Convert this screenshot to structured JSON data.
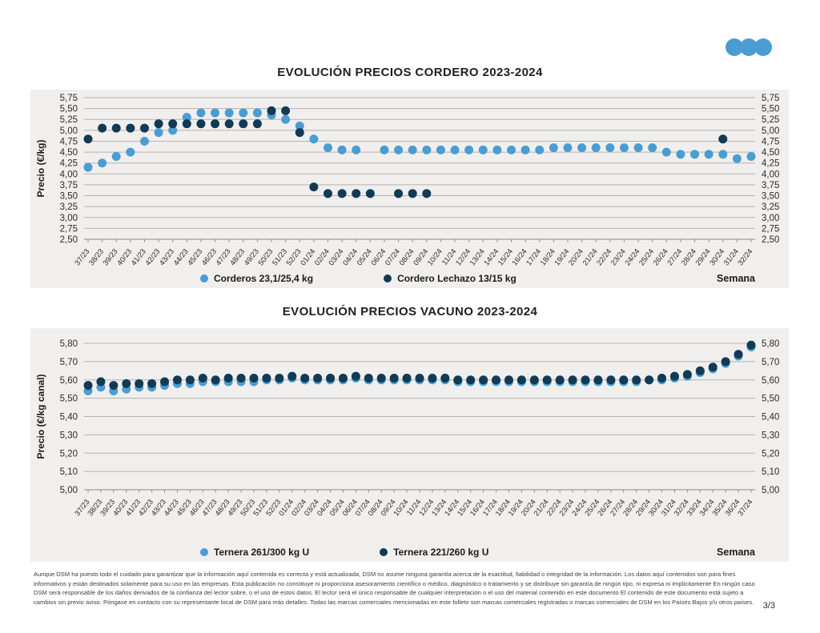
{
  "page": {
    "logo": {
      "name": "three-dots-logo",
      "color": "#4A9DD2"
    },
    "footer_text": "Aunque DSM ha puesto todo el cuidado para garantizar que la información aquí contenida es correcta y está actualizada, DSM no asume ninguna garantía acerca de la exactitud, fiabilidad o integridad de la información. Los datos aquí contenidos son para fines informativos y están destinados solamente para su uso en las empresas. Esta publicación no constituye ni proporciona asesoramiento científico o médico, diagnóstico o tratamiento y se distribuye sin garantía de ningún tipo, ni expresa ni implícitamente En ningún caso DSM será responsable de los daños derivados de la confianza del lector sobre, o el uso de estos datos. El lector será el único responsable de cualquier interpretación o el uso del material contenido en este documento El contenido de este documento está sujeto a cambios sin previo aviso. Póngase en contacto con su representante local de DSM para más detalles. Todas las marcas comerciales mencionadas en este folleto son marcas comerciales registradas o marcas comerciales de DSM en los Países Bajos y/u otros países.",
    "page_number": "3/3"
  },
  "chart_data": [
    {
      "type": "scatter",
      "title": "EVOLUCIÓN PRECIOS CORDERO 2023-2024",
      "ylabel": "Precio (€/kg)",
      "xlabel": "Semana",
      "ylim": [
        2.5,
        5.75
      ],
      "ystep": 0.25,
      "grid": true,
      "legend_position": "bottom",
      "categories": [
        "37/23",
        "38/23",
        "39/23",
        "40/23",
        "41/23",
        "42/23",
        "43/23",
        "44/23",
        "45/23",
        "46/23",
        "47/23",
        "48/23",
        "49/23",
        "50/23",
        "51/23",
        "52/23",
        "01/24",
        "02/24",
        "03/24",
        "04/24",
        "05/24",
        "06/24",
        "07/24",
        "08/24",
        "09/24",
        "10/24",
        "11/24",
        "12/24",
        "13/24",
        "14/24",
        "15/24",
        "16/24",
        "17/24",
        "18/24",
        "19/24",
        "20/24",
        "21/24",
        "22/24",
        "23/24",
        "24/24",
        "25/24",
        "26/24",
        "27/24",
        "28/24",
        "29/24",
        "30/24",
        "31/24",
        "32/24"
      ],
      "series": [
        {
          "name": "Corderos 23,1/25,4 kg",
          "color": "#4A9DD2",
          "values": [
            4.15,
            4.25,
            4.4,
            4.5,
            4.75,
            4.95,
            5.0,
            5.3,
            5.4,
            5.4,
            5.4,
            5.4,
            5.4,
            5.35,
            5.25,
            5.1,
            4.8,
            4.6,
            4.55,
            4.55,
            null,
            4.55,
            4.55,
            4.55,
            4.55,
            4.55,
            4.55,
            4.55,
            4.55,
            4.55,
            4.55,
            4.55,
            4.55,
            4.6,
            4.6,
            4.6,
            4.6,
            4.6,
            4.6,
            4.6,
            4.6,
            4.5,
            4.45,
            4.45,
            4.45,
            4.45,
            4.35,
            4.4
          ]
        },
        {
          "name": "Cordero Lechazo 13/15 kg",
          "color": "#113A55",
          "values": [
            4.8,
            5.05,
            5.05,
            5.05,
            5.05,
            5.15,
            5.15,
            5.15,
            5.15,
            5.15,
            5.15,
            5.15,
            5.15,
            5.45,
            5.45,
            4.95,
            3.7,
            3.55,
            3.55,
            3.55,
            3.55,
            null,
            3.55,
            3.55,
            3.55,
            null,
            null,
            null,
            null,
            null,
            null,
            null,
            null,
            null,
            null,
            null,
            null,
            null,
            null,
            null,
            null,
            null,
            null,
            null,
            null,
            4.8,
            null,
            null
          ]
        }
      ]
    },
    {
      "type": "scatter",
      "title": "EVOLUCIÓN PRECIOS VACUNO 2023-2024",
      "ylabel": "Precio (€/kg canal)",
      "xlabel": "Semana",
      "ylim": [
        5.0,
        5.8
      ],
      "ystep": 0.1,
      "grid": true,
      "legend_position": "bottom",
      "categories": [
        "37/23",
        "38/23",
        "39/23",
        "40/23",
        "41/23",
        "42/23",
        "43/23",
        "44/23",
        "45/23",
        "46/23",
        "47/23",
        "48/23",
        "49/23",
        "50/23",
        "51/23",
        "52/23",
        "01/24",
        "02/24",
        "03/24",
        "04/24",
        "05/24",
        "06/24",
        "07/24",
        "08/24",
        "09/24",
        "10/24",
        "11/24",
        "12/24",
        "13/24",
        "14/24",
        "15/24",
        "16/24",
        "17/24",
        "18/24",
        "19/24",
        "20/24",
        "21/24",
        "22/24",
        "23/24",
        "24/24",
        "25/24",
        "26/24",
        "27/24",
        "28/24",
        "29/24",
        "30/24",
        "31/24",
        "32/24",
        "33/24",
        "34/24",
        "35/24",
        "36/24",
        "37/24"
      ],
      "series": [
        {
          "name": "Ternera 261/300 kg U",
          "color": "#4A9DD2",
          "values": [
            5.54,
            5.56,
            5.54,
            5.55,
            5.56,
            5.56,
            5.57,
            5.58,
            5.58,
            5.59,
            5.59,
            5.59,
            5.59,
            5.59,
            5.6,
            5.6,
            5.61,
            5.6,
            5.6,
            5.6,
            5.6,
            5.61,
            5.6,
            5.6,
            5.6,
            5.6,
            5.6,
            5.6,
            5.6,
            5.59,
            5.59,
            5.59,
            5.59,
            5.59,
            5.59,
            5.59,
            5.59,
            5.59,
            5.59,
            5.59,
            5.59,
            5.59,
            5.59,
            5.59,
            5.6,
            5.6,
            5.61,
            5.62,
            5.64,
            5.66,
            5.69,
            5.73,
            5.78
          ]
        },
        {
          "name": "Ternera 221/260 kg U",
          "color": "#113A55",
          "values": [
            5.57,
            5.59,
            5.57,
            5.58,
            5.58,
            5.58,
            5.59,
            5.6,
            5.6,
            5.61,
            5.6,
            5.61,
            5.61,
            5.61,
            5.61,
            5.61,
            5.62,
            5.61,
            5.61,
            5.61,
            5.61,
            5.62,
            5.61,
            5.61,
            5.61,
            5.61,
            5.61,
            5.61,
            5.61,
            5.6,
            5.6,
            5.6,
            5.6,
            5.6,
            5.6,
            5.6,
            5.6,
            5.6,
            5.6,
            5.6,
            5.6,
            5.6,
            5.6,
            5.6,
            5.6,
            5.61,
            5.62,
            5.63,
            5.65,
            5.67,
            5.7,
            5.74,
            5.79
          ]
        }
      ]
    }
  ]
}
